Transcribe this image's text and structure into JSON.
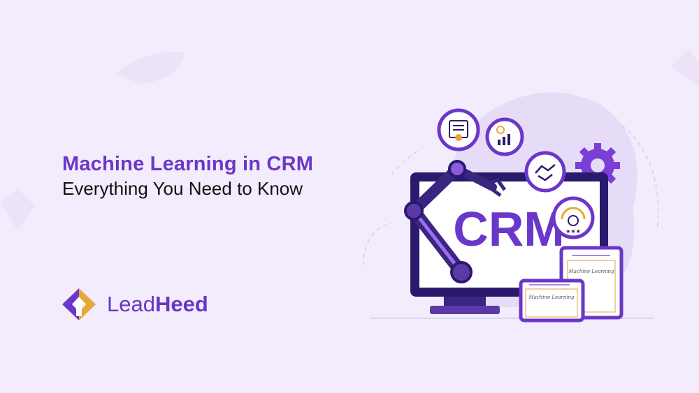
{
  "banner": {
    "title": "Machine Learning in CRM",
    "subtitle": "Everything You Need to Know"
  },
  "brand": {
    "name_light": "Lead",
    "name_bold": "Heed",
    "primary_color": "#6b37c9",
    "accent_color": "#e8a73a"
  },
  "illustration": {
    "screen_text": "CRM",
    "card_front_text": "Machine Learning",
    "card_back_text": "Machine Learning",
    "icons": [
      "checklist-icon",
      "growth-chart-icon",
      "handshake-icon",
      "customer-rating-icon",
      "gear-icon",
      "robot-arm-icon"
    ]
  }
}
